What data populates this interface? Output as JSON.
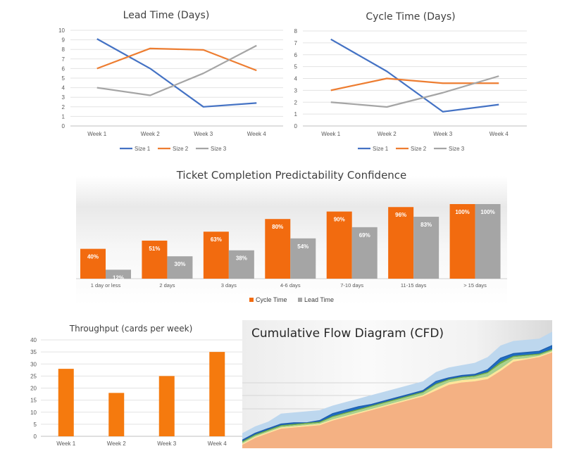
{
  "chart_data": [
    {
      "id": "lead",
      "type": "line",
      "title": "Lead Time (Days)",
      "categories": [
        "Week 1",
        "Week 2",
        "Week 3",
        "Week 4"
      ],
      "ylim": [
        0,
        10
      ],
      "yticks": [
        0,
        1,
        2,
        3,
        4,
        5,
        6,
        7,
        8,
        9,
        10
      ],
      "grid": true,
      "legend": "bottom",
      "series": [
        {
          "name": "Size 1",
          "color": "#4472C4",
          "values": [
            9.1,
            6.0,
            2.0,
            2.4
          ]
        },
        {
          "name": "Size 2",
          "color": "#ED7D31",
          "values": [
            6.0,
            8.1,
            7.95,
            5.8
          ]
        },
        {
          "name": "Size 3",
          "color": "#A5A5A5",
          "values": [
            4.0,
            3.2,
            5.5,
            8.4
          ]
        }
      ]
    },
    {
      "id": "cycle",
      "type": "line",
      "title": "Cycle Time (Days)",
      "categories": [
        "Week 1",
        "Week 2",
        "Week 3",
        "Week 4"
      ],
      "ylim": [
        0,
        8
      ],
      "yticks": [
        0,
        1,
        2,
        3,
        4,
        5,
        6,
        7,
        8
      ],
      "grid": true,
      "legend": "bottom",
      "series": [
        {
          "name": "Size 1",
          "color": "#4472C4",
          "values": [
            7.3,
            4.6,
            1.2,
            1.8
          ]
        },
        {
          "name": "Size 2",
          "color": "#ED7D31",
          "values": [
            3.0,
            4.0,
            3.6,
            3.6
          ]
        },
        {
          "name": "Size 3",
          "color": "#A5A5A5",
          "values": [
            2.0,
            1.6,
            2.8,
            4.2
          ]
        }
      ]
    },
    {
      "id": "pred",
      "type": "bar",
      "title": "Ticket Completion Predictability Confidence",
      "categories": [
        "1 day or less",
        "2 days",
        "3 days",
        "4-6 days",
        "7-10 days",
        "11-15 days",
        "> 15 days"
      ],
      "ylim": [
        0,
        100
      ],
      "legend": "bottom",
      "series": [
        {
          "name": "Cycle Time",
          "color": "#F26B0F",
          "values": [
            40,
            51,
            63,
            80,
            90,
            96,
            100
          ],
          "labels": [
            "40%",
            "51%",
            "63%",
            "80%",
            "90%",
            "96%",
            "100%"
          ]
        },
        {
          "name": "Lead Time",
          "color": "#A5A5A5",
          "values": [
            12,
            30,
            38,
            54,
            69,
            83,
            100
          ],
          "labels": [
            "12%",
            "30%",
            "38%",
            "54%",
            "69%",
            "83%",
            "100%"
          ]
        }
      ]
    },
    {
      "id": "tp",
      "type": "bar",
      "title": "Throughput (cards per week)",
      "categories": [
        "Week 1",
        "Week 2",
        "Week 3",
        "Week 4"
      ],
      "ylim": [
        0,
        40
      ],
      "yticks": [
        0,
        5,
        10,
        15,
        20,
        25,
        30,
        35,
        40
      ],
      "grid": true,
      "series": [
        {
          "name": "",
          "color": "#F57A0E",
          "values": [
            28,
            18,
            25,
            35
          ]
        }
      ]
    },
    {
      "id": "cfd",
      "type": "area",
      "title": "Cumulative Flow Diagram (CFD)",
      "x": [
        0,
        1,
        2,
        3,
        4,
        5,
        6,
        7,
        8,
        9,
        10,
        11,
        12,
        13,
        14,
        15,
        16,
        17,
        18,
        19,
        20,
        21,
        22,
        23,
        24
      ],
      "ylim": [
        0,
        100
      ],
      "series": [
        {
          "name": "",
          "color": "#F4B183",
          "values": [
            3,
            9,
            13,
            17,
            18,
            19,
            20,
            24,
            27,
            30,
            33,
            36,
            39,
            42,
            45,
            50,
            55,
            57,
            58,
            60,
            67,
            75,
            77,
            79,
            83
          ]
        },
        {
          "name": "",
          "color": "#FFE699",
          "values": [
            4,
            10,
            14,
            18,
            19,
            20,
            21,
            25,
            28,
            31,
            34,
            37,
            40,
            43,
            46,
            52,
            57,
            59,
            60,
            62,
            69,
            77,
            78,
            80,
            84
          ]
        },
        {
          "name": "",
          "color": "#A9D18E",
          "values": [
            5,
            11,
            15,
            19,
            20,
            21,
            22,
            27,
            30,
            33,
            36,
            39,
            42,
            45,
            48,
            55,
            59,
            61,
            62,
            65,
            73,
            79,
            80,
            81,
            85
          ]
        },
        {
          "name": "",
          "color": "#70AD47",
          "values": [
            6,
            12,
            16,
            20,
            21,
            22,
            23,
            28,
            31,
            34,
            37,
            40,
            43,
            46,
            49,
            56,
            60,
            62,
            63,
            66,
            75,
            80,
            81,
            82,
            86
          ]
        },
        {
          "name": "",
          "color": "#1F6FC5",
          "values": [
            7,
            13,
            17,
            21,
            22,
            22,
            24,
            30,
            33,
            36,
            38,
            41,
            44,
            47,
            50,
            58,
            61,
            63,
            64,
            68,
            78,
            82,
            83,
            84,
            89
          ]
        },
        {
          "name": "",
          "color": "#BDD7EE",
          "values": [
            13,
            19,
            23,
            30,
            31,
            32,
            33,
            37,
            40,
            43,
            46,
            49,
            52,
            55,
            58,
            66,
            70,
            72,
            74,
            79,
            89,
            93,
            94,
            95,
            101
          ]
        }
      ]
    }
  ]
}
